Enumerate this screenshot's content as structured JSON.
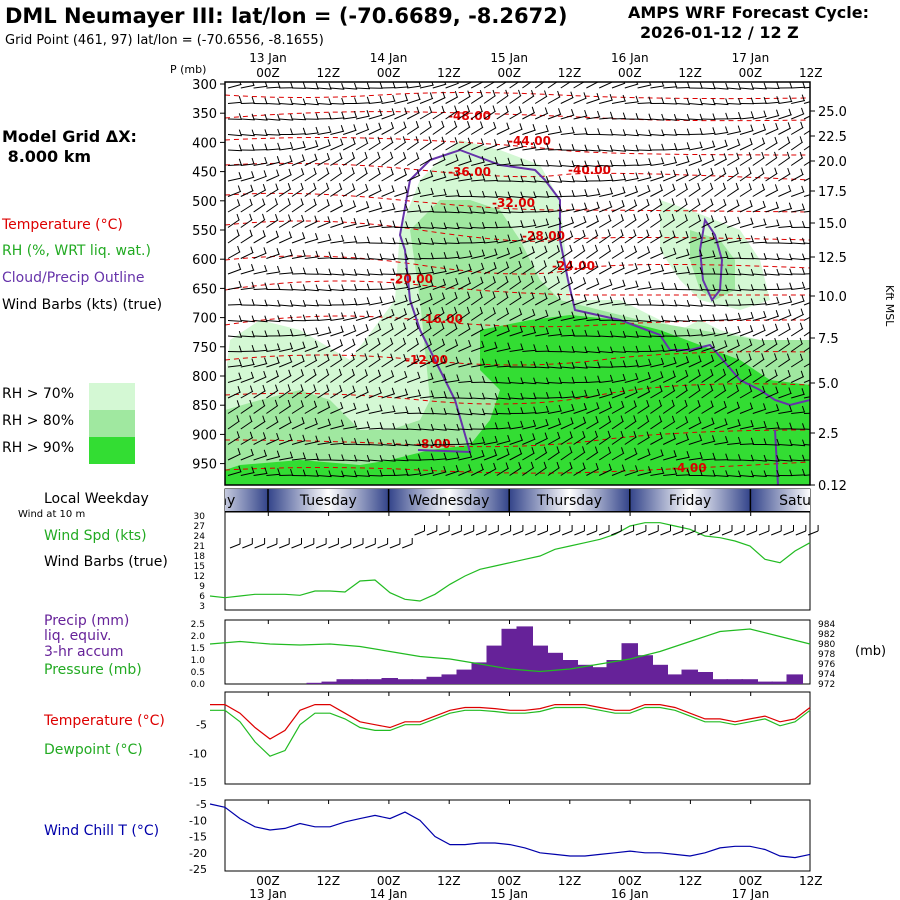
{
  "header": {
    "title": "DML Neumayer III:  lat/lon = (-70.6689, -8.2672)",
    "grid_point": "Grid Point (461, 97) lat/lon = (-70.6556, -8.1655)",
    "cycle_label": "AMPS WRF Forecast Cycle:",
    "cycle_value": "2026-01-12 / 12  Z"
  },
  "left_legend": {
    "model_grid_line1": "Model Grid ΔX:",
    "model_grid_line2": " 8.000 km",
    "temperature": "Temperature (°C)",
    "rh": "RH (%, WRT liq. wat.)",
    "cloud": "Cloud/Precip Outline",
    "wind": "Wind Barbs (kts) (true)",
    "rh70": "RH > 70%",
    "rh80": "RH > 80%",
    "rh90": "RH > 90%",
    "local_weekday": "Local Weekday",
    "wind_at_10m": "Wind at 10 m",
    "wind_spd": "Wind Spd (kts)",
    "wind_barbs": "Wind Barbs (true)",
    "precip1": "Precip (mm)",
    "precip2": "liq. equiv.",
    "precip3": "3-hr accum",
    "pressure": "Pressure (mb)",
    "temp2": "Temperature (°C)",
    "dewpoint": "Dewpoint (°C)",
    "windchill": "Wind Chill T (°C)"
  },
  "colors": {
    "rh70": "#d4f8d4",
    "rh80": "#a0e8a0",
    "rh90": "#33dd33",
    "temperature": "#dd0000",
    "cloud": "#6633aa",
    "dewpoint": "#22bb22",
    "windspd": "#22bb22",
    "pressure": "#22bb22",
    "precip": "#662299",
    "windchill": "#0000aa"
  },
  "time_axis": {
    "top_hour_labels": [
      "00Z",
      "12Z",
      "00Z",
      "12Z",
      "00Z",
      "12Z",
      "00Z",
      "12Z",
      "00Z",
      "12Z"
    ],
    "top_date_labels": [
      "13 Jan",
      "14 Jan",
      "15 Jan",
      "16 Jan",
      "17 Jan"
    ],
    "bottom_hour_labels": [
      "00Z",
      "12Z",
      "00Z",
      "12Z",
      "00Z",
      "12Z",
      "00Z",
      "12Z",
      "00Z",
      "12Z"
    ],
    "bottom_date_labels": [
      "13 Jan",
      "14 Jan",
      "15 Jan",
      "16 Jan",
      "17 Jan"
    ],
    "weekdays": [
      "Monday",
      "Tuesday",
      "Wednesday",
      "Thursday",
      "Friday",
      "Saturday"
    ]
  },
  "cross_section": {
    "p_label": "P (mb)",
    "pressure_ticks": [
      "300",
      "350",
      "400",
      "450",
      "500",
      "550",
      "600",
      "650",
      "700",
      "750",
      "800",
      "850",
      "900",
      "950"
    ],
    "height_ticks": [
      "25.0",
      "22.5",
      "20.0",
      "17.5",
      "15.0",
      "12.5",
      "10.0",
      "7.5",
      "5.0",
      "2.5",
      "0.12"
    ],
    "height_unit": "Kft MSL",
    "temp_labels": [
      "-48.00",
      "-44.00",
      "-40.00",
      "-36.00",
      "-32.00",
      "-28.00",
      "-24.00",
      "-20.00",
      "-16.00",
      "-12.00",
      "-8.00",
      "-4.00"
    ]
  },
  "panels": {
    "wind_ticks": [
      "30",
      "27",
      "24",
      "21",
      "18",
      "15",
      "12",
      "9",
      "6",
      "3"
    ],
    "precip_ticks": [
      "2.5",
      "2.0",
      "1.5",
      "1.0",
      "0.5",
      "0.0"
    ],
    "pressure_ticks": [
      "984",
      "982",
      "980",
      "978",
      "976",
      "974",
      "972"
    ],
    "pressure_unit": "(mb)",
    "temp_ticks": [
      "-5",
      "-10",
      "-15"
    ],
    "windchill_ticks": [
      "-5",
      "-10",
      "-15",
      "-20",
      "-25"
    ]
  },
  "chart_data": [
    {
      "type": "line",
      "title": "Wind Spd (kts)",
      "x_hours": [
        0,
        6,
        12,
        18,
        24,
        30,
        36,
        42,
        48,
        54,
        60,
        66,
        72,
        78,
        84,
        90,
        96,
        102,
        108,
        114,
        120,
        126,
        132,
        138,
        144,
        150,
        156,
        162,
        168,
        174,
        180,
        186,
        192,
        198,
        204,
        210,
        216,
        222,
        228,
        234,
        240
      ],
      "series": [
        {
          "name": "Wind Spd (kts)",
          "values": [
            6,
            5.5,
            6,
            6.5,
            6.5,
            6.5,
            6.2,
            7.5,
            7.5,
            7.2,
            10.5,
            10.8,
            7,
            5,
            4.5,
            6.5,
            9.5,
            12,
            14,
            15,
            16,
            17,
            18,
            20,
            21,
            22,
            23,
            24.5,
            27,
            28,
            28,
            27,
            26,
            24,
            23.5,
            22.5,
            21,
            17,
            16,
            19.5,
            22
          ]
        }
      ],
      "ylim": [
        3,
        30
      ]
    },
    {
      "type": "bar",
      "title": "Precip (mm) liq. equiv. 3-hr accum",
      "x_hours": [
        42,
        48,
        54,
        60,
        66,
        72,
        78,
        84,
        90,
        96,
        102,
        108,
        114,
        120,
        126,
        132,
        138,
        144,
        150,
        156,
        162,
        168,
        174,
        180,
        186,
        192,
        198,
        204,
        210,
        216,
        222,
        228,
        234
      ],
      "series": [
        {
          "name": "Precip (mm)",
          "values": [
            0.05,
            0.1,
            0.2,
            0.2,
            0.2,
            0.25,
            0.2,
            0.2,
            0.3,
            0.4,
            0.6,
            0.9,
            1.6,
            2.3,
            2.4,
            1.6,
            1.3,
            1.0,
            0.8,
            0.7,
            1.0,
            1.7,
            1.2,
            0.8,
            0.4,
            0.6,
            0.5,
            0.2,
            0.2,
            0.2,
            0.1,
            0.1,
            0.4
          ]
        }
      ],
      "ylim": [
        0,
        2.5
      ]
    },
    {
      "type": "line",
      "title": "Pressure (mb)",
      "x_hours": [
        0,
        12,
        24,
        36,
        48,
        60,
        72,
        84,
        96,
        108,
        120,
        132,
        144,
        156,
        168,
        180,
        192,
        204,
        216,
        228,
        240
      ],
      "series": [
        {
          "name": "Pressure (mb)",
          "values": [
            980,
            980.5,
            980,
            979.8,
            980,
            979.5,
            978.5,
            977.5,
            977,
            976,
            975,
            974.5,
            975,
            976,
            977,
            978.5,
            980.5,
            982.5,
            983,
            981.5,
            980
          ]
        }
      ],
      "ylim": [
        972,
        984
      ]
    },
    {
      "type": "line",
      "title": "Temperature / Dewpoint (°C)",
      "x_hours": [
        0,
        6,
        12,
        18,
        24,
        30,
        36,
        42,
        48,
        54,
        60,
        66,
        72,
        78,
        84,
        90,
        96,
        102,
        108,
        114,
        120,
        126,
        132,
        138,
        144,
        150,
        156,
        162,
        168,
        174,
        180,
        186,
        192,
        198,
        204,
        210,
        216,
        222,
        228,
        234,
        240
      ],
      "series": [
        {
          "name": "Temperature (°C)",
          "values": [
            -1.5,
            -1.5,
            -3,
            -5.5,
            -7.5,
            -6,
            -2.5,
            -1.5,
            -1.5,
            -3,
            -4.5,
            -5,
            -5.5,
            -4.5,
            -4.5,
            -3.5,
            -2.5,
            -2,
            -2,
            -2.2,
            -2.5,
            -2.5,
            -2.2,
            -1.5,
            -1.5,
            -1.5,
            -2,
            -2.5,
            -2.5,
            -1.5,
            -1.5,
            -2,
            -3,
            -4,
            -4,
            -4.5,
            -4,
            -3.5,
            -4.5,
            -4,
            -2
          ]
        },
        {
          "name": "Dewpoint (°C)",
          "values": [
            -2.5,
            -2.5,
            -4.5,
            -8,
            -10.5,
            -9.5,
            -5,
            -3,
            -3,
            -4,
            -5.5,
            -6,
            -6,
            -5,
            -5,
            -4,
            -3,
            -2.5,
            -2.5,
            -2.7,
            -3,
            -3,
            -2.7,
            -2,
            -2,
            -2,
            -2.5,
            -3,
            -3,
            -2,
            -2,
            -2.5,
            -3.5,
            -4.5,
            -4.5,
            -5,
            -4.5,
            -4,
            -5.2,
            -4.5,
            -2.5
          ]
        }
      ],
      "ylim": [
        -15,
        0
      ]
    },
    {
      "type": "line",
      "title": "Wind Chill T (°C)",
      "x_hours": [
        0,
        6,
        12,
        18,
        24,
        30,
        36,
        42,
        48,
        54,
        60,
        66,
        72,
        78,
        84,
        90,
        96,
        102,
        108,
        114,
        120,
        126,
        132,
        138,
        144,
        150,
        156,
        162,
        168,
        174,
        180,
        186,
        192,
        198,
        204,
        210,
        216,
        222,
        228,
        234,
        240
      ],
      "series": [
        {
          "name": "Wind Chill T (°C)",
          "values": [
            -5,
            -6,
            -9.5,
            -12,
            -13,
            -12.5,
            -11,
            -12,
            -12,
            -10.5,
            -9.5,
            -8.5,
            -9.5,
            -7.5,
            -10,
            -15,
            -17.5,
            -17.5,
            -17,
            -17,
            -17.5,
            -18.5,
            -20,
            -20.5,
            -21,
            -21,
            -20.5,
            -20,
            -19.5,
            -20,
            -20,
            -20.5,
            -21,
            -20,
            -18.5,
            -18,
            -18,
            -19,
            -21,
            -21.5,
            -20.5
          ]
        }
      ],
      "ylim": [
        -25,
        -5
      ]
    }
  ]
}
